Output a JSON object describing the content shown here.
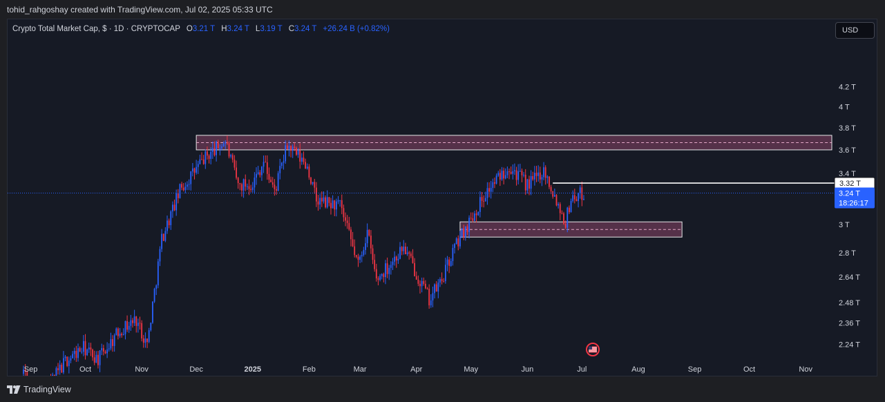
{
  "header": {
    "attribution": "tohid_rahgoshay created with TradingView.com, Jul 02, 2025 05:33 UTC"
  },
  "legend": {
    "title": "Crypto Total Market Cap, $ · 1D · CRYPTOCAP",
    "open_label": "O",
    "open": "3.21 T",
    "high_label": "H",
    "high": "3.24 T",
    "low_label": "L",
    "low": "3.19 T",
    "close_label": "C",
    "close": "3.24 T",
    "change": "+26.24 B (+0.82%)"
  },
  "currency_button": "USD",
  "price_labels": {
    "horizontal_line": "3.32 T",
    "last_price": "3.24 T",
    "countdown": "18:26:17"
  },
  "footer": {
    "brand": "TradingView"
  },
  "colors": {
    "background": "#161a25",
    "up_candle": "#2962ff",
    "down_candle": "#f23645",
    "zone_fill": "#6b3a56",
    "last_price_badge": "#2962ff"
  },
  "chart_data": {
    "type": "candlestick",
    "title": "Crypto Total Market Cap, $ · 1D · CRYPTOCAP",
    "y_scale": "log",
    "ylim": [
      2.17,
      4.45
    ],
    "y_ticks": [
      "4.2 T",
      "4 T",
      "3.8 T",
      "3.6 T",
      "3.4 T",
      "3 T",
      "2.8 T",
      "2.64 T",
      "2.48 T",
      "2.36 T",
      "2.24 T"
    ],
    "x_ticks": [
      "Sep",
      "Oct",
      "Nov",
      "Dec",
      "2025",
      "Feb",
      "Mar",
      "Apr",
      "May",
      "Jun",
      "Jul",
      "Aug",
      "Sep",
      "Oct",
      "Nov"
    ],
    "xlim": [
      "2024-08-28",
      "2025-11-30"
    ],
    "close_series_approx": [
      {
        "date": "2024-08-28",
        "value": 2.1
      },
      {
        "date": "2024-09-05",
        "value": 1.95
      },
      {
        "date": "2024-09-20",
        "value": 2.15
      },
      {
        "date": "2024-09-30",
        "value": 2.22
      },
      {
        "date": "2024-10-08",
        "value": 2.16
      },
      {
        "date": "2024-10-20",
        "value": 2.32
      },
      {
        "date": "2024-10-29",
        "value": 2.38
      },
      {
        "date": "2024-11-04",
        "value": 2.24
      },
      {
        "date": "2024-11-12",
        "value": 2.9
      },
      {
        "date": "2024-11-22",
        "value": 3.26
      },
      {
        "date": "2024-12-05",
        "value": 3.52
      },
      {
        "date": "2024-12-17",
        "value": 3.68
      },
      {
        "date": "2024-12-24",
        "value": 3.3
      },
      {
        "date": "2025-01-01",
        "value": 3.32
      },
      {
        "date": "2025-01-07",
        "value": 3.5
      },
      {
        "date": "2025-01-13",
        "value": 3.25
      },
      {
        "date": "2025-01-20",
        "value": 3.64
      },
      {
        "date": "2025-01-31",
        "value": 3.46
      },
      {
        "date": "2025-02-05",
        "value": 3.18
      },
      {
        "date": "2025-02-18",
        "value": 3.14
      },
      {
        "date": "2025-02-28",
        "value": 2.72
      },
      {
        "date": "2025-03-05",
        "value": 2.95
      },
      {
        "date": "2025-03-10",
        "value": 2.62
      },
      {
        "date": "2025-03-25",
        "value": 2.84
      },
      {
        "date": "2025-04-08",
        "value": 2.5
      },
      {
        "date": "2025-04-15",
        "value": 2.62
      },
      {
        "date": "2025-04-22",
        "value": 2.84
      },
      {
        "date": "2025-05-09",
        "value": 3.24
      },
      {
        "date": "2025-05-22",
        "value": 3.47
      },
      {
        "date": "2025-06-01",
        "value": 3.3
      },
      {
        "date": "2025-06-10",
        "value": 3.43
      },
      {
        "date": "2025-06-22",
        "value": 3.02
      },
      {
        "date": "2025-06-25",
        "value": 3.2
      },
      {
        "date": "2025-07-02",
        "value": 3.24
      }
    ],
    "resistance_zone": {
      "from": "2024-12-01",
      "to": "2025-11-30",
      "low": 3.6,
      "high": 3.73
    },
    "support_zone": {
      "from": "2025-04-25",
      "to": "2025-08-25",
      "low": 2.91,
      "high": 3.02
    },
    "horizontal_line": {
      "from": "2025-06-15",
      "value": 3.32
    },
    "last_price": 3.24
  }
}
